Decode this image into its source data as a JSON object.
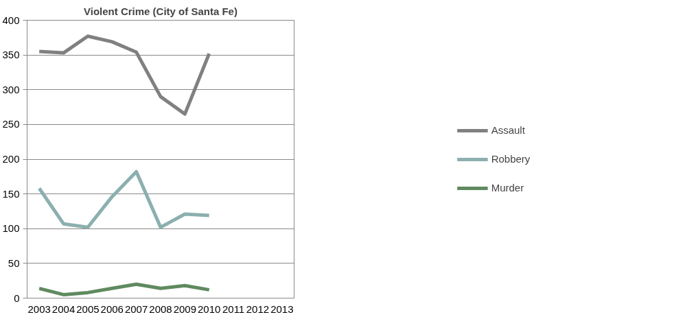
{
  "chart_data": {
    "type": "line",
    "title": "Violent Crime (City of Santa Fe)",
    "categories": [
      "2003",
      "2004",
      "2005",
      "2006",
      "2007",
      "2008",
      "2009",
      "2010",
      "2011",
      "2012",
      "2013"
    ],
    "series": [
      {
        "name": "Assault",
        "color": "#808080",
        "values": [
          355,
          353,
          377,
          369,
          354,
          290,
          265,
          352,
          null,
          null,
          null
        ]
      },
      {
        "name": "Robbery",
        "color": "#8cafaf",
        "values": [
          158,
          107,
          102,
          146,
          182,
          102,
          121,
          119,
          null,
          null,
          null
        ]
      },
      {
        "name": "Murder",
        "color": "#5f8a5f",
        "values": [
          14,
          5,
          8,
          14,
          20,
          14,
          18,
          12,
          null,
          null,
          null
        ]
      }
    ],
    "ylim": [
      0,
      400
    ],
    "yticks": [
      0,
      50,
      100,
      150,
      200,
      250,
      300,
      350,
      400
    ],
    "grid": "y",
    "legend": "right",
    "marker": "none"
  }
}
